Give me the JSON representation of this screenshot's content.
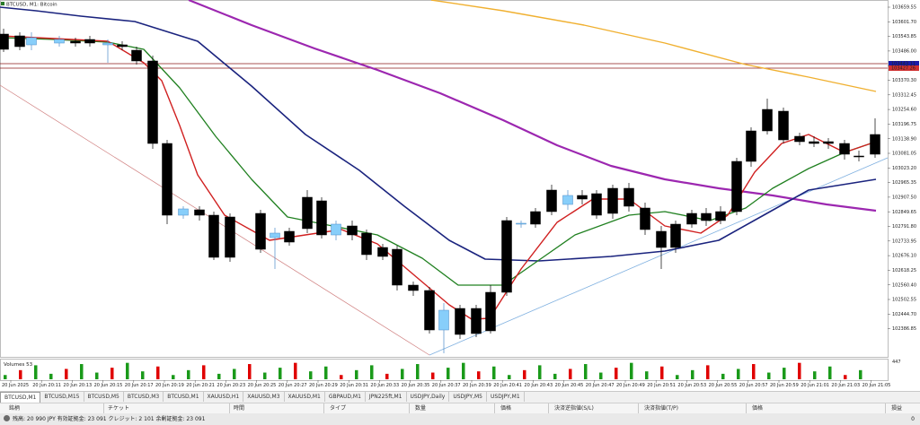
{
  "chart": {
    "title": "BTCUSD, M1:  Bitcoin",
    "volumes_label": "Volumes 53",
    "volume_axis_label": "447",
    "price_labels": [
      "103659.55",
      "103601.70",
      "103543.85",
      "103486.00",
      "103428.15",
      "103370.30",
      "103312.45",
      "103254.60",
      "103196.75",
      "103138.90",
      "103081.05",
      "103023.20",
      "102965.35",
      "102907.50",
      "102849.65",
      "102791.80",
      "102733.95",
      "102676.10",
      "102618.25",
      "102560.40",
      "102502.55",
      "102444.70",
      "102386.85"
    ],
    "price_tags": [
      {
        "text": "103443.11",
        "color": "#1a1aa6"
      },
      {
        "text": "103427.26",
        "color": "#d03030"
      }
    ],
    "time_labels": [
      "20 Jun 2025",
      "20 Jun 20:11",
      "20 Jun 20:13",
      "20 Jun 20:15",
      "20 Jun 20:17",
      "20 Jun 20:19",
      "20 Jun 20:21",
      "20 Jun 20:23",
      "20 Jun 20:25",
      "20 Jun 20:27",
      "20 Jun 20:29",
      "20 Jun 20:31",
      "20 Jun 20:33",
      "20 Jun 20:35",
      "20 Jun 20:37",
      "20 Jun 20:39",
      "20 Jun 20:41",
      "20 Jun 20:43",
      "20 Jun 20:45",
      "20 Jun 20:47",
      "20 Jun 20:49",
      "20 Jun 20:51",
      "20 Jun 20:53",
      "20 Jun 20:55",
      "20 Jun 20:57",
      "20 Jun 20:59",
      "20 Jun 21:01",
      "20 Jun 21:03",
      "20 Jun 21:05"
    ],
    "colors": {
      "bull": "#87cefa",
      "bear": "#000000",
      "vol_up": "#1a9a1a",
      "vol_down": "#e00000",
      "ma_fast": "#d02020",
      "ma_mid": "#208020",
      "ma_slow": "#1a237e",
      "ma_purple": "#9c27b0",
      "ma_orange": "#f0b030",
      "hline": "#8b1a1a",
      "trend_red": "#d08080",
      "trend_blue": "#7fb0e0"
    }
  },
  "tabs": [
    "BTCUSD,M1",
    "BTCUSD,M15",
    "BTCUSD,M5",
    "BTCUSD,M3",
    "BTCUSD,M1",
    "XAUUSD,H1",
    "XAUUSD,M3",
    "XAUUSD,M1",
    "GBPAUD,M1",
    "JPN225ft,M1",
    "USDJPY,Daily",
    "USDJPY,M5",
    "USDJPY,M1"
  ],
  "terminal": {
    "columns": [
      "銘柄",
      "チケット",
      "時間",
      "タイプ",
      "数量",
      "価格",
      "決済逆指値(S/L)",
      "決済指値(T/P)",
      "価格",
      "損益"
    ],
    "status": "残高: 20 990 JPY  有効証拠金: 23 091  クレジット: 2 101  余剰証拠金: 23 091",
    "total": "0"
  }
}
